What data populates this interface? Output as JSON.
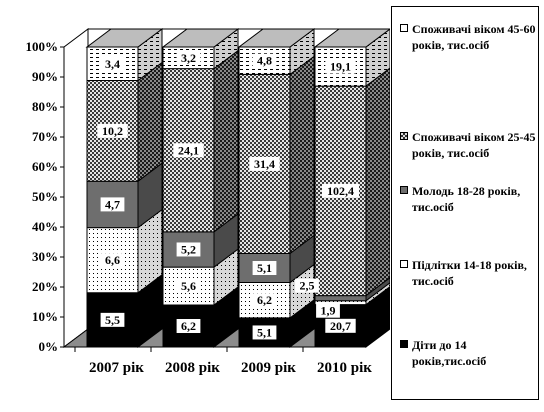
{
  "chart_data": {
    "type": "bar",
    "stacked": "percent",
    "three_d": true,
    "categories": [
      "2007 рік",
      "2008 рік",
      "2009 рік",
      "2010 рік"
    ],
    "y_ticks": [
      "0%",
      "10%",
      "20%",
      "30%",
      "40%",
      "50%",
      "60%",
      "70%",
      "80%",
      "90%",
      "100%"
    ],
    "ylim": [
      0,
      100
    ],
    "legend_position": "right",
    "series": [
      {
        "name": "Діти до 14 років,тис.осіб",
        "values": [
          5.5,
          6.2,
          5.1,
          20.7
        ],
        "labels": [
          "5,5",
          "6,2",
          "5,1",
          "20,7"
        ],
        "color": "#000000",
        "pattern": "solid"
      },
      {
        "name": "Підлітки 14-18 років, тис.осіб",
        "values": [
          6.6,
          5.6,
          6.2,
          1.9
        ],
        "labels": [
          "6,6",
          "5,6",
          "6,2",
          "1,9"
        ],
        "color": "#ffffff",
        "pattern": "dots"
      },
      {
        "name": "Молодь 18-28 років, тис.осіб",
        "values": [
          4.7,
          5.2,
          5.1,
          2.5
        ],
        "labels": [
          "4,7",
          "5,2",
          "5,1",
          "2,5"
        ],
        "color": "#6e6e6e",
        "pattern": "solid"
      },
      {
        "name": "Споживачі віком 25-45 років, тис.осіб",
        "values": [
          10.2,
          24.1,
          31.4,
          102.4
        ],
        "labels": [
          "10,2",
          "24,1",
          "31,4",
          "102,4"
        ],
        "color": "#9a9a9a",
        "pattern": "checker"
      },
      {
        "name": "Споживачі віком 45-60 років, тис.осіб",
        "values": [
          3.4,
          3.2,
          4.8,
          19.1
        ],
        "labels": [
          "3,4",
          "3,2",
          "4,8",
          "19,1"
        ],
        "color": "#ffffff",
        "pattern": "dash"
      }
    ]
  }
}
